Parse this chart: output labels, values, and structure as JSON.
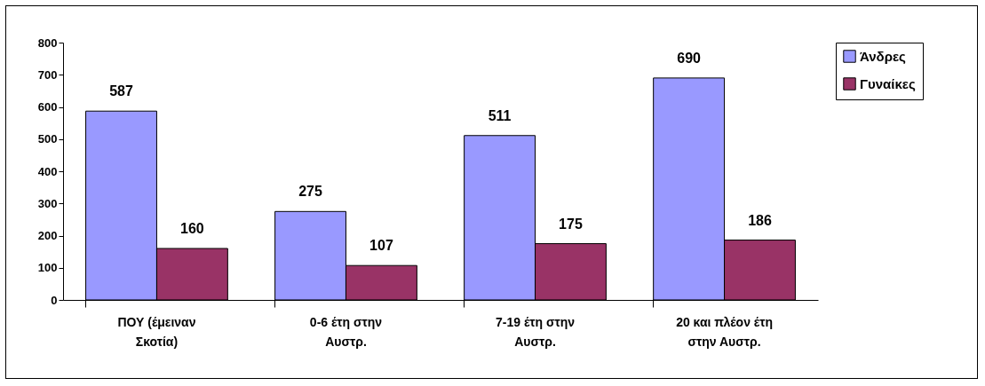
{
  "chart_data": {
    "type": "bar",
    "categories": [
      "ΠΟΥ (έμειναν Σκοτία)",
      "0-6 έτη στην Αυστρ.",
      "7-19 έτη στην Αυστρ.",
      "20 και πλέον έτη στην Αυστρ."
    ],
    "series": [
      {
        "name": "Άνδρες",
        "color": "#9999ff",
        "values": [
          587,
          275,
          511,
          690
        ]
      },
      {
        "name": "Γυναίκες",
        "color": "#993366",
        "values": [
          160,
          107,
          175,
          186
        ]
      }
    ],
    "ylim": [
      0,
      800
    ],
    "yticks": [
      0,
      100,
      200,
      300,
      400,
      500,
      600,
      700,
      800
    ],
    "grid": false,
    "legend": "right",
    "data_labels": true
  }
}
